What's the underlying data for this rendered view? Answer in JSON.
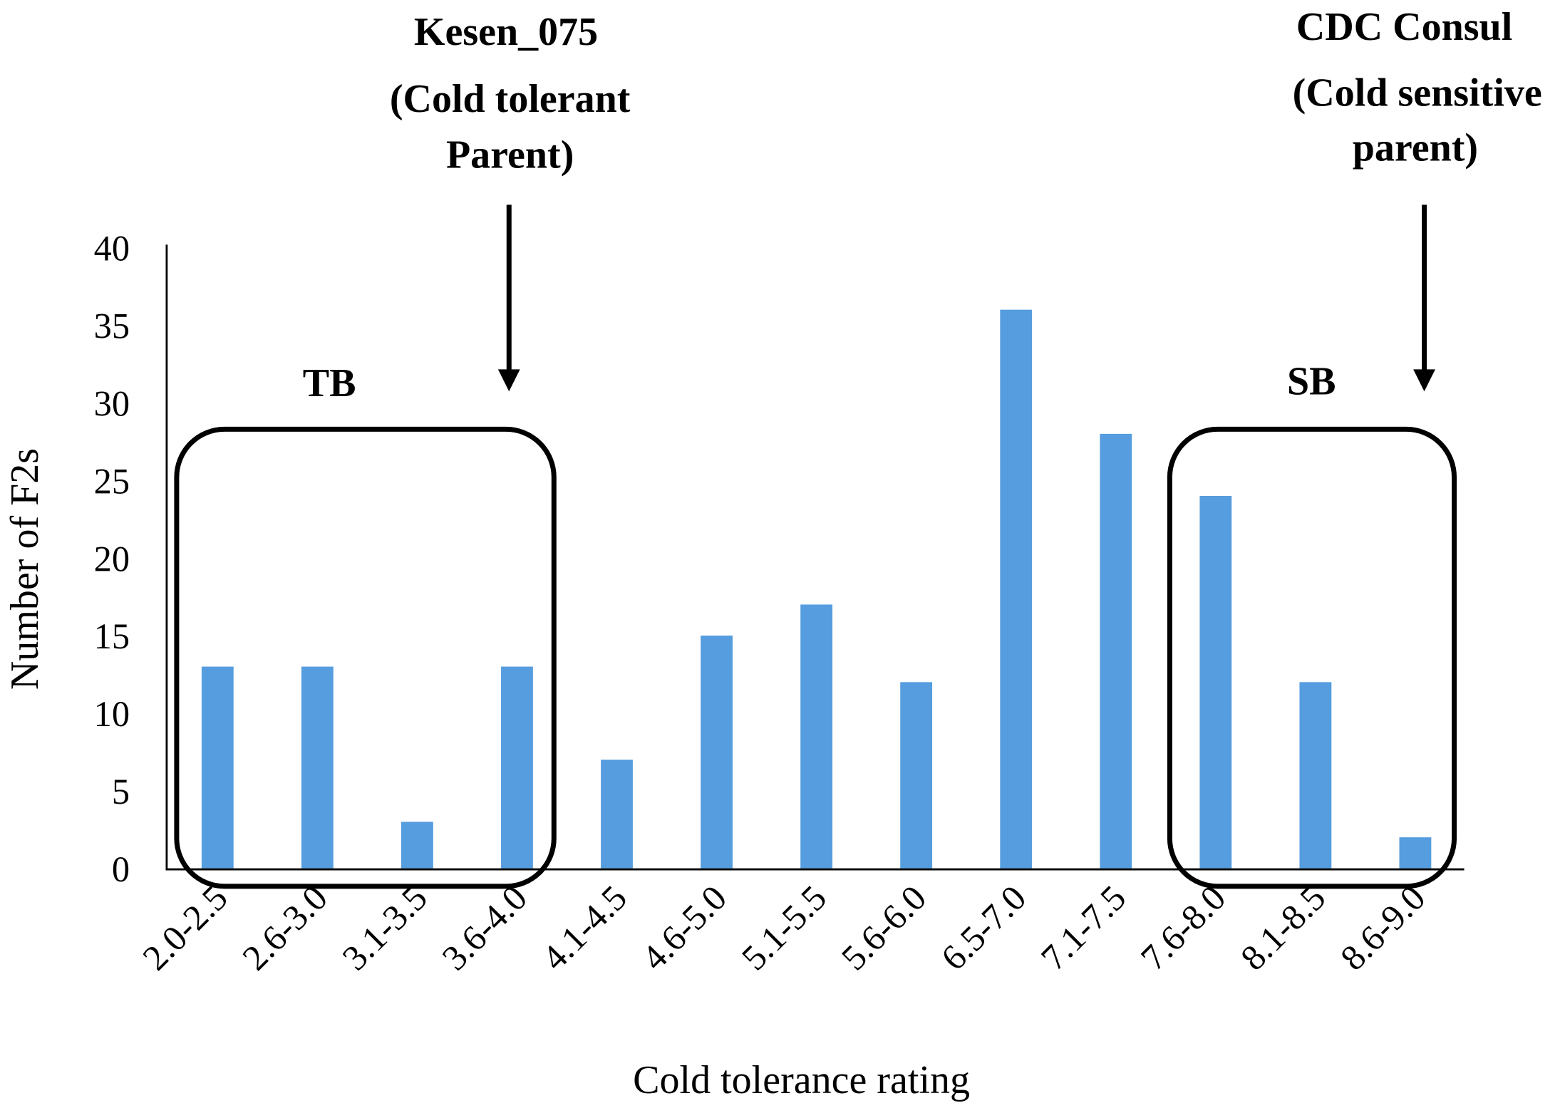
{
  "chart_data": {
    "type": "bar",
    "title": "",
    "xlabel": "Cold tolerance rating",
    "ylabel": "Number of F2s",
    "ylim": [
      0,
      40
    ],
    "yticks": [
      0,
      5,
      10,
      15,
      20,
      25,
      30,
      35,
      40
    ],
    "grid": false,
    "bar_color": "#559dde",
    "categories": [
      "2.0-2.5",
      "2.6-3.0",
      "3.1-3.5",
      "3.6-4.0",
      "4.1-4.5",
      "4.6-5.0",
      "5.1-5.5",
      "5.6-6.0",
      "6.5-7.0",
      "7.1-7.5",
      "7.6-8.0",
      "8.1-8.5",
      "8.6-9.0"
    ],
    "values": [
      13,
      13,
      3,
      13,
      7,
      15,
      17,
      12,
      36,
      28,
      24,
      12,
      2
    ],
    "annotations": {
      "tolerant_parent": {
        "lines": [
          "Kesen_075",
          "(Cold tolerant",
          "Parent)"
        ],
        "category": "3.6-4.0"
      },
      "sensitive_parent": {
        "lines": [
          "CDC Consul",
          "(Cold sensitive",
          "parent)"
        ],
        "category": "8.6-9.0"
      },
      "tb_group": {
        "label": "TB",
        "categories": [
          "2.0-2.5",
          "2.6-3.0",
          "3.1-3.5",
          "3.6-4.0"
        ]
      },
      "sb_group": {
        "label": "SB",
        "categories": [
          "7.6-8.0",
          "8.1-8.5",
          "8.6-9.0"
        ]
      }
    }
  }
}
